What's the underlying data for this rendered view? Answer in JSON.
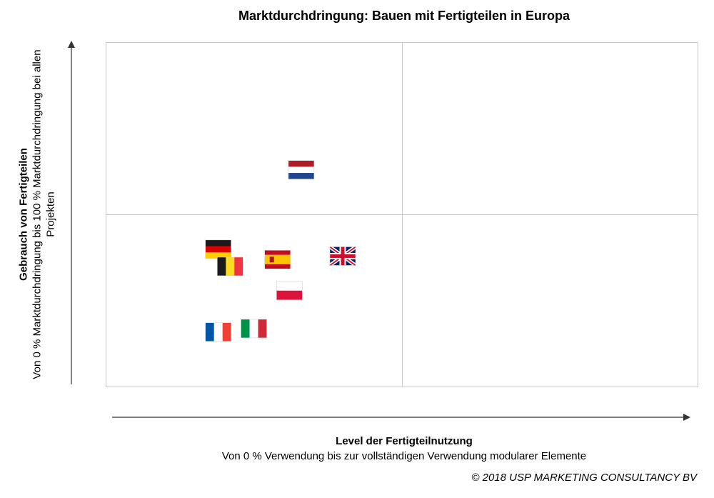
{
  "chart_data": {
    "type": "scatter",
    "title": "Marktdurchdringung: Bauen mit Fertigteilen in Europa",
    "xlabel": "Level der Fertigteilnutzung",
    "xlabel_sub": "Von 0 % Verwendung bis zur vollständigen Verwendung modularer Elemente",
    "ylabel": "Gebrauch von Fertigteilen",
    "ylabel_sub": "Von 0 % Marktdurchdringung bis 100 % Marktdurchdringung bei allen Projekten",
    "xlim": [
      0,
      100
    ],
    "ylim": [
      0,
      100
    ],
    "grid": "quadrants",
    "points": [
      {
        "flag": "netherlands",
        "x": 33,
        "y": 63
      },
      {
        "flag": "germany",
        "x": 19,
        "y": 40
      },
      {
        "flag": "belgium",
        "x": 21,
        "y": 35
      },
      {
        "flag": "spain",
        "x": 29,
        "y": 37
      },
      {
        "flag": "united-kingdom",
        "x": 40,
        "y": 38
      },
      {
        "flag": "poland",
        "x": 31,
        "y": 28
      },
      {
        "flag": "italy",
        "x": 25,
        "y": 17
      },
      {
        "flag": "france",
        "x": 19,
        "y": 16
      }
    ]
  },
  "footer": {
    "copyright": "© 2018 USP MARKETING CONSULTANCY BV"
  },
  "colors": {
    "gridline": "#c9c9c9",
    "axis": "#333333"
  }
}
